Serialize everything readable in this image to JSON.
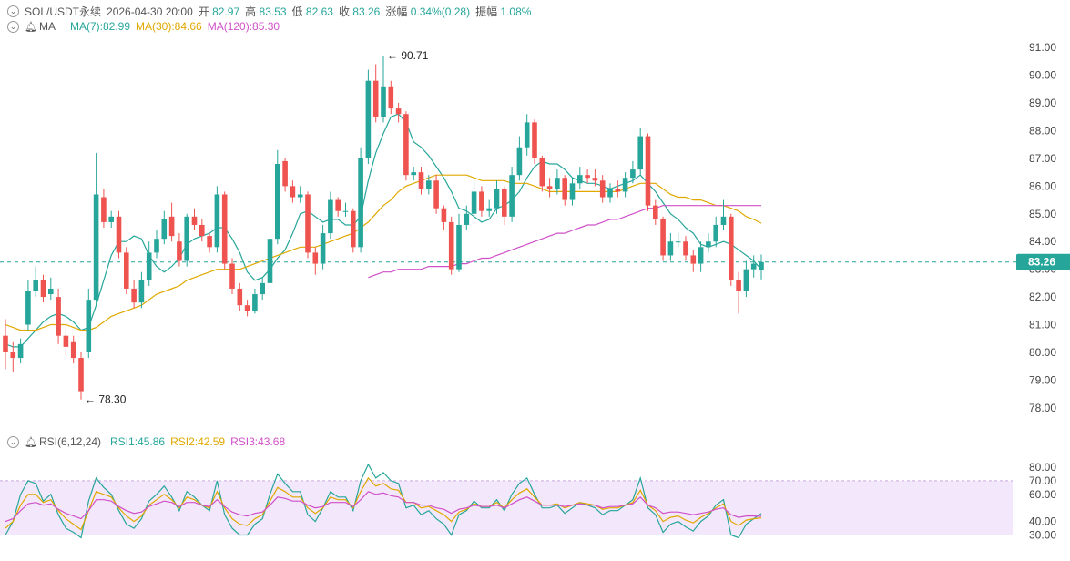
{
  "header": {
    "symbol": "SOL/USDT永续",
    "datetime": "2026-04-30 20:00",
    "open_label": "开",
    "open": "82.97",
    "high_label": "高",
    "high": "83.53",
    "low_label": "低",
    "low": "82.63",
    "close_label": "收",
    "close": "83.26",
    "change_label": "涨幅",
    "change": "0.34%(0.28)",
    "amp_label": "振幅",
    "amp": "1.08%"
  },
  "ma_legend": {
    "name": "MA",
    "ma7": "MA(7):82.99",
    "ma30": "MA(30):84.66",
    "ma120": "MA(120):85.30"
  },
  "rsi_legend": {
    "name": "RSI(6,12,24)",
    "rsi1": "RSI1:45.86",
    "rsi2": "RSI2:42.59",
    "rsi3": "RSI3:43.68"
  },
  "colors": {
    "up": "#26a69a",
    "down": "#ef5350",
    "ma7": "#26a69a",
    "ma30": "#e0a800",
    "ma120": "#d050c8",
    "rsi_band": "#f3e8fb"
  },
  "chart_data": [
    {
      "type": "candlestick",
      "ylim": [
        77.6,
        91.4
      ],
      "y_ticks": [
        "91.00",
        "90.00",
        "89.00",
        "88.00",
        "87.00",
        "86.00",
        "85.00",
        "84.00",
        "83.00",
        "82.00",
        "81.00",
        "80.00",
        "79.00",
        "78.00"
      ],
      "last_price": "83.26",
      "annotations": {
        "high": "90.71",
        "low": "78.30"
      },
      "closes": [
        80.0,
        79.8,
        80.3,
        82.2,
        82.6,
        82.0,
        82.3,
        80.6,
        80.2,
        79.8,
        78.6,
        81.9,
        85.7,
        84.7,
        84.9,
        83.6,
        82.3,
        81.8,
        82.6,
        83.6,
        84.1,
        84.8,
        84.2,
        83.3,
        84.9,
        84.6,
        84.2,
        83.8,
        85.7,
        83.2,
        82.3,
        81.7,
        81.5,
        82.1,
        82.5,
        84.1,
        86.8,
        86.0,
        85.6,
        85.7,
        83.6,
        83.2,
        84.3,
        85.5,
        85.1,
        85.1,
        83.8,
        87.0,
        89.8,
        88.5,
        89.6,
        88.8,
        88.6,
        86.4,
        86.5,
        85.9,
        86.2,
        85.2,
        84.7,
        83.0,
        84.6,
        85.0,
        85.8,
        85.1,
        85.2,
        85.9,
        84.9,
        86.4,
        87.4,
        88.3,
        87.0,
        86.0,
        85.9,
        86.3,
        85.5,
        86.1,
        86.4,
        86.3,
        86.2,
        85.6,
        85.9,
        85.8,
        86.3,
        86.6,
        87.8,
        85.3,
        84.8,
        83.5,
        84.0,
        84.0,
        83.5,
        83.2,
        83.8,
        84.0,
        84.6,
        84.9,
        82.6,
        82.2,
        83.0,
        83.2,
        83.26
      ],
      "opens": [
        80.6,
        80.0,
        79.8,
        81.0,
        82.2,
        82.6,
        82.1,
        82.0,
        80.6,
        80.4,
        79.8,
        80.0,
        81.9,
        85.6,
        84.7,
        84.9,
        83.6,
        82.3,
        81.8,
        82.6,
        83.6,
        84.1,
        84.9,
        84.0,
        83.3,
        84.9,
        84.6,
        84.2,
        83.8,
        85.7,
        83.2,
        82.3,
        81.7,
        81.5,
        82.1,
        82.5,
        84.1,
        86.9,
        86.0,
        85.6,
        85.7,
        83.6,
        83.2,
        84.3,
        85.5,
        85.1,
        85.1,
        83.8,
        87.0,
        89.8,
        88.5,
        89.6,
        88.8,
        88.6,
        86.4,
        86.5,
        85.9,
        86.2,
        85.2,
        84.7,
        83.0,
        84.6,
        85.0,
        85.8,
        85.1,
        85.2,
        85.9,
        84.9,
        86.4,
        87.4,
        88.3,
        87.0,
        86.0,
        85.9,
        86.3,
        85.5,
        86.1,
        86.4,
        86.3,
        86.2,
        85.6,
        85.9,
        85.8,
        86.3,
        86.6,
        87.8,
        85.3,
        84.8,
        83.5,
        84.0,
        84.0,
        83.5,
        83.2,
        83.8,
        84.0,
        84.6,
        84.9,
        82.6,
        82.2,
        83.0,
        82.97
      ],
      "highs": [
        81.2,
        80.4,
        80.5,
        82.6,
        83.1,
        82.8,
        82.7,
        82.3,
        80.9,
        80.6,
        80.0,
        82.3,
        87.2,
        85.9,
        85.1,
        85.1,
        83.8,
        82.6,
        82.9,
        84.0,
        84.4,
        85.1,
        85.4,
        84.3,
        85.0,
        85.2,
        84.8,
        84.3,
        86.0,
        85.8,
        83.4,
        82.5,
        81.9,
        82.3,
        82.7,
        84.4,
        87.3,
        87.0,
        86.2,
        86.0,
        85.8,
        83.8,
        84.6,
        85.8,
        85.6,
        85.4,
        85.2,
        87.4,
        90.2,
        90.4,
        90.71,
        89.8,
        89.0,
        88.7,
        86.7,
        86.7,
        86.4,
        86.4,
        85.3,
        84.9,
        85.0,
        85.3,
        86.2,
        86.0,
        85.5,
        86.2,
        86.0,
        86.7,
        87.8,
        88.6,
        88.4,
        87.1,
        86.3,
        86.6,
        86.4,
        86.3,
        86.7,
        86.6,
        86.6,
        86.4,
        86.1,
        86.2,
        86.5,
        86.9,
        88.1,
        87.9,
        85.5,
        84.9,
        84.3,
        84.3,
        84.2,
        83.7,
        84.0,
        84.3,
        84.9,
        85.5,
        85.0,
        82.9,
        83.3,
        83.5,
        83.53
      ],
      "lows": [
        79.4,
        79.3,
        79.6,
        80.8,
        82.0,
        81.8,
        81.9,
        80.3,
        79.9,
        79.6,
        78.3,
        79.8,
        81.7,
        84.5,
        84.5,
        83.4,
        82.1,
        81.6,
        81.6,
        82.4,
        83.4,
        83.9,
        84.0,
        83.1,
        83.1,
        84.4,
        84.0,
        83.6,
        83.6,
        83.0,
        82.1,
        81.5,
        81.3,
        81.4,
        81.9,
        82.3,
        83.9,
        85.8,
        85.4,
        85.4,
        83.4,
        82.8,
        83.0,
        84.1,
        84.9,
        84.9,
        83.6,
        83.6,
        86.8,
        88.3,
        88.3,
        88.6,
        88.3,
        86.2,
        86.2,
        85.7,
        85.7,
        85.0,
        84.4,
        82.8,
        82.9,
        84.4,
        84.8,
        84.9,
        84.9,
        85.0,
        84.6,
        84.7,
        86.2,
        87.1,
        86.8,
        85.8,
        85.6,
        85.7,
        85.3,
        85.3,
        85.9,
        86.1,
        86.0,
        85.4,
        85.4,
        85.6,
        85.6,
        86.1,
        86.4,
        85.1,
        84.6,
        83.3,
        83.3,
        83.8,
        83.3,
        82.9,
        82.9,
        83.6,
        83.8,
        84.4,
        82.4,
        81.4,
        82.0,
        82.7,
        82.63
      ],
      "series": [
        {
          "name": "MA(7)",
          "values": [
            80.3,
            80.2,
            80.2,
            80.5,
            80.8,
            81.1,
            81.3,
            81.4,
            81.3,
            81.1,
            80.8,
            80.9,
            81.7,
            82.6,
            83.5,
            84.0,
            84.0,
            84.2,
            84.1,
            83.5,
            83.1,
            82.9,
            83.1,
            83.4,
            83.9,
            84.1,
            84.2,
            84.3,
            84.5,
            84.5,
            84.1,
            83.6,
            82.9,
            82.6,
            82.7,
            83.0,
            83.4,
            83.7,
            84.3,
            85.0,
            85.1,
            84.9,
            84.7,
            84.8,
            84.8,
            84.6,
            84.6,
            84.9,
            86.2,
            87.2,
            87.9,
            88.5,
            88.6,
            88.3,
            87.6,
            87.4,
            87.1,
            86.7,
            86.3,
            85.8,
            85.2,
            85.1,
            84.9,
            84.7,
            84.8,
            85.2,
            85.3,
            85.5,
            85.8,
            86.3,
            86.7,
            86.9,
            86.8,
            86.8,
            86.6,
            86.3,
            86.2,
            86.1,
            86.1,
            86.0,
            85.9,
            86.0,
            86.1,
            86.2,
            86.4,
            86.1,
            85.8,
            85.4,
            85.0,
            84.8,
            84.5,
            84.3,
            83.9,
            83.8,
            83.9,
            84.0,
            83.9,
            83.7,
            83.5,
            83.3,
            82.99
          ]
        },
        {
          "name": "MA(30)",
          "values": [
            81.0,
            80.9,
            80.8,
            80.8,
            80.8,
            80.9,
            81.0,
            81.0,
            81.0,
            80.9,
            80.8,
            80.8,
            80.9,
            81.1,
            81.3,
            81.4,
            81.5,
            81.6,
            81.7,
            81.9,
            82.1,
            82.2,
            82.3,
            82.4,
            82.6,
            82.7,
            82.8,
            82.9,
            83.0,
            83.0,
            83.0,
            83.0,
            83.1,
            83.2,
            83.3,
            83.4,
            83.5,
            83.6,
            83.7,
            83.8,
            83.8,
            83.8,
            83.9,
            84.0,
            84.1,
            84.2,
            84.3,
            84.5,
            84.7,
            85.0,
            85.3,
            85.5,
            85.8,
            86.0,
            86.1,
            86.2,
            86.3,
            86.4,
            86.4,
            86.4,
            86.4,
            86.4,
            86.3,
            86.2,
            86.2,
            86.2,
            86.2,
            86.1,
            86.1,
            86.1,
            86.0,
            85.9,
            85.8,
            85.8,
            85.8,
            85.8,
            85.8,
            85.8,
            85.8,
            85.8,
            85.8,
            85.8,
            85.9,
            86.0,
            86.1,
            86.1,
            86.1,
            85.9,
            85.7,
            85.6,
            85.6,
            85.5,
            85.5,
            85.4,
            85.3,
            85.3,
            85.2,
            85.1,
            84.9,
            84.8,
            84.66
          ]
        },
        {
          "name": "MA(120)",
          "values": [
            null,
            null,
            null,
            null,
            null,
            null,
            null,
            null,
            null,
            null,
            null,
            null,
            null,
            null,
            null,
            null,
            null,
            null,
            null,
            null,
            null,
            null,
            null,
            null,
            null,
            null,
            null,
            null,
            null,
            null,
            null,
            null,
            null,
            null,
            null,
            null,
            null,
            null,
            null,
            null,
            null,
            null,
            null,
            null,
            null,
            null,
            null,
            null,
            82.7,
            82.8,
            82.9,
            82.9,
            83.0,
            83.0,
            83.0,
            83.0,
            83.1,
            83.1,
            83.1,
            83.1,
            83.2,
            83.2,
            83.3,
            83.4,
            83.4,
            83.5,
            83.6,
            83.7,
            83.8,
            83.9,
            84.0,
            84.1,
            84.2,
            84.3,
            84.3,
            84.4,
            84.5,
            84.6,
            84.6,
            84.7,
            84.8,
            84.8,
            84.9,
            85.0,
            85.1,
            85.2,
            85.2,
            85.3,
            85.3,
            85.3,
            85.3,
            85.3,
            85.3,
            85.3,
            85.3,
            85.3,
            85.3,
            85.3,
            85.3,
            85.3,
            85.3
          ]
        }
      ]
    },
    {
      "type": "line",
      "title": "RSI(6,12,24)",
      "ylim": [
        27,
        86
      ],
      "y_ticks": [
        "80.00",
        "70.00",
        "60.00",
        "40.00",
        "30.00"
      ],
      "band": [
        30,
        70
      ],
      "series": [
        {
          "name": "RSI1",
          "values": [
            30,
            40,
            60,
            70,
            68,
            55,
            60,
            45,
            35,
            32,
            28,
            55,
            72,
            65,
            60,
            48,
            38,
            35,
            42,
            55,
            60,
            66,
            58,
            48,
            62,
            58,
            52,
            48,
            70,
            45,
            35,
            30,
            30,
            38,
            42,
            60,
            75,
            68,
            62,
            62,
            45,
            40,
            50,
            62,
            58,
            58,
            48,
            70,
            82,
            72,
            76,
            70,
            68,
            50,
            52,
            45,
            48,
            42,
            38,
            30,
            45,
            48,
            55,
            50,
            50,
            56,
            48,
            60,
            68,
            72,
            60,
            50,
            50,
            52,
            46,
            50,
            54,
            52,
            50,
            45,
            48,
            48,
            52,
            56,
            72,
            50,
            45,
            32,
            38,
            40,
            36,
            33,
            40,
            44,
            52,
            56,
            30,
            28,
            38,
            42,
            45.86
          ]
        },
        {
          "name": "RSI2",
          "values": [
            35,
            40,
            52,
            60,
            60,
            54,
            56,
            48,
            42,
            38,
            34,
            48,
            62,
            60,
            58,
            50,
            44,
            40,
            44,
            52,
            56,
            60,
            56,
            50,
            58,
            56,
            52,
            50,
            62,
            50,
            42,
            38,
            37,
            42,
            45,
            55,
            65,
            62,
            58,
            58,
            50,
            46,
            50,
            58,
            56,
            56,
            50,
            62,
            72,
            66,
            68,
            64,
            63,
            54,
            54,
            50,
            51,
            48,
            45,
            40,
            47,
            49,
            53,
            51,
            51,
            54,
            50,
            56,
            61,
            64,
            58,
            52,
            52,
            53,
            50,
            52,
            54,
            53,
            52,
            49,
            50,
            50,
            52,
            54,
            63,
            52,
            48,
            40,
            43,
            44,
            41,
            39,
            43,
            46,
            50,
            53,
            40,
            37,
            41,
            42,
            42.59
          ]
        },
        {
          "name": "RSI3",
          "values": [
            40,
            42,
            48,
            53,
            54,
            52,
            53,
            49,
            46,
            44,
            42,
            48,
            56,
            56,
            55,
            51,
            48,
            46,
            47,
            51,
            53,
            55,
            54,
            51,
            54,
            54,
            52,
            51,
            56,
            51,
            47,
            45,
            44,
            46,
            47,
            52,
            58,
            57,
            55,
            55,
            52,
            50,
            51,
            54,
            54,
            54,
            51,
            56,
            62,
            60,
            61,
            59,
            58,
            54,
            54,
            52,
            52,
            50,
            49,
            46,
            49,
            50,
            52,
            51,
            51,
            52,
            50,
            53,
            56,
            58,
            55,
            52,
            52,
            52,
            51,
            52,
            53,
            52,
            52,
            50,
            51,
            51,
            52,
            53,
            58,
            52,
            50,
            46,
            47,
            47,
            46,
            45,
            46,
            47,
            49,
            50,
            45,
            43,
            44,
            44,
            43.68
          ]
        }
      ]
    }
  ]
}
